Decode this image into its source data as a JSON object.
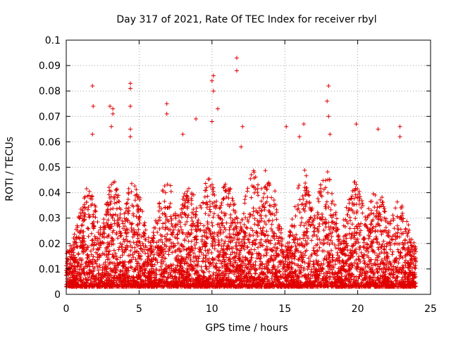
{
  "chart_data": {
    "type": "scatter",
    "title": "Day 317 of 2021, Rate Of TEC Index for receiver rbyl",
    "xlabel": "GPS time / hours",
    "ylabel": "ROTI / TECUs",
    "xlim": [
      0,
      25
    ],
    "ylim": [
      0,
      0.1
    ],
    "x_ticks": [
      "0",
      "5",
      "10",
      "15",
      "20",
      "25"
    ],
    "y_ticks": [
      "0",
      "0.01",
      "0.02",
      "0.03",
      "0.04",
      "0.05",
      "0.06",
      "0.07",
      "0.08",
      "0.09",
      "0.1"
    ],
    "grid": true,
    "marker": "plus",
    "color": "#e00000",
    "outliers": [
      {
        "x": 1.8,
        "y": 0.082
      },
      {
        "x": 1.85,
        "y": 0.074
      },
      {
        "x": 1.8,
        "y": 0.063
      },
      {
        "x": 3.0,
        "y": 0.074
      },
      {
        "x": 3.2,
        "y": 0.073
      },
      {
        "x": 3.1,
        "y": 0.066
      },
      {
        "x": 3.2,
        "y": 0.071
      },
      {
        "x": 4.4,
        "y": 0.083
      },
      {
        "x": 4.4,
        "y": 0.081
      },
      {
        "x": 4.4,
        "y": 0.074
      },
      {
        "x": 4.4,
        "y": 0.065
      },
      {
        "x": 4.4,
        "y": 0.062
      },
      {
        "x": 6.9,
        "y": 0.075
      },
      {
        "x": 6.9,
        "y": 0.071
      },
      {
        "x": 10.1,
        "y": 0.086
      },
      {
        "x": 10.0,
        "y": 0.084
      },
      {
        "x": 10.1,
        "y": 0.08
      },
      {
        "x": 10.4,
        "y": 0.073
      },
      {
        "x": 10.0,
        "y": 0.068
      },
      {
        "x": 11.7,
        "y": 0.093
      },
      {
        "x": 11.7,
        "y": 0.088
      },
      {
        "x": 12.1,
        "y": 0.066
      },
      {
        "x": 15.1,
        "y": 0.066
      },
      {
        "x": 16.0,
        "y": 0.062
      },
      {
        "x": 16.3,
        "y": 0.067
      },
      {
        "x": 18.0,
        "y": 0.082
      },
      {
        "x": 17.9,
        "y": 0.076
      },
      {
        "x": 18.0,
        "y": 0.07
      },
      {
        "x": 18.1,
        "y": 0.063
      },
      {
        "x": 19.9,
        "y": 0.067
      },
      {
        "x": 21.4,
        "y": 0.065
      },
      {
        "x": 22.9,
        "y": 0.066
      },
      {
        "x": 22.9,
        "y": 0.062
      },
      {
        "x": 8.9,
        "y": 0.069
      },
      {
        "x": 8.0,
        "y": 0.063
      },
      {
        "x": 12.0,
        "y": 0.058
      }
    ]
  }
}
